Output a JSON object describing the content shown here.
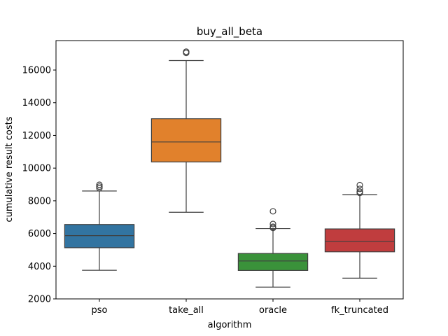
{
  "chart_data": {
    "type": "box",
    "title": "buy_all_beta",
    "xlabel": "algorithm",
    "ylabel": "cumulative result costs",
    "ylim": [
      2000,
      17800
    ],
    "yticks": [
      2000,
      4000,
      6000,
      8000,
      10000,
      12000,
      14000,
      16000
    ],
    "ytick_labels": [
      "2000",
      "4000",
      "6000",
      "8000",
      "10000",
      "12000",
      "14000",
      "16000"
    ],
    "grid": false,
    "categories": [
      "pso",
      "take_all",
      "oracle",
      "fk_truncated"
    ],
    "boxes": [
      {
        "name": "pso",
        "color": "#3274a1",
        "whisker_low": 3750,
        "q1": 5130,
        "median": 5870,
        "q3": 6550,
        "whisker_high": 8600,
        "outliers": [
          8780,
          8870,
          8980
        ]
      },
      {
        "name": "take_all",
        "color": "#e1812c",
        "whisker_low": 7300,
        "q1": 10380,
        "median": 11600,
        "q3": 13020,
        "whisker_high": 16580,
        "outliers": [
          17050,
          17120
        ]
      },
      {
        "name": "oracle",
        "color": "#3a923a",
        "whisker_low": 2720,
        "q1": 3740,
        "median": 4320,
        "q3": 4780,
        "whisker_high": 6300,
        "outliers": [
          6340,
          6410,
          6580,
          7360
        ]
      },
      {
        "name": "fk_truncated",
        "color": "#c03d3e",
        "whisker_low": 3270,
        "q1": 4880,
        "median": 5520,
        "q3": 6280,
        "whisker_high": 8380,
        "outliers": [
          8480,
          8560,
          8730,
          8960
        ]
      }
    ]
  }
}
